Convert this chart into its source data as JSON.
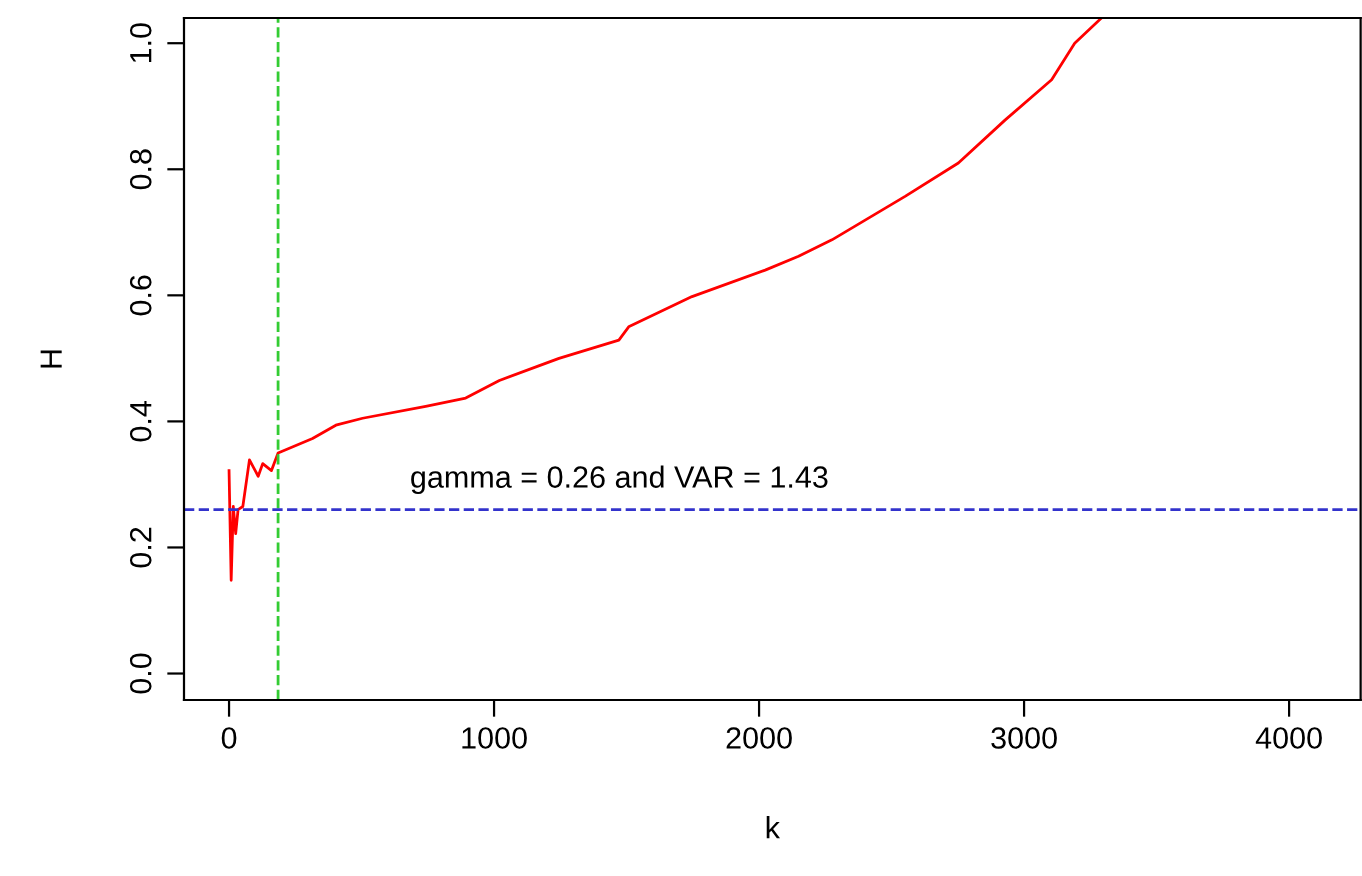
{
  "chart_data": {
    "type": "line",
    "xlabel": "k",
    "ylabel": "H",
    "series": [
      {
        "color": "#ff0000",
        "x": [
          0,
          8,
          16,
          25,
          34,
          52,
          77,
          110,
          127,
          160,
          185,
          315,
          403,
          504,
          742,
          893,
          1020,
          1194,
          1245,
          1471,
          1508,
          1747,
          2023,
          2149,
          2275,
          2551,
          2752,
          2928,
          3104,
          3191,
          3292
        ],
        "values": [
          0.322,
          0.148,
          0.265,
          0.222,
          0.26,
          0.265,
          0.339,
          0.313,
          0.333,
          0.322,
          0.35,
          0.373,
          0.394,
          0.405,
          0.424,
          0.437,
          0.465,
          0.492,
          0.5,
          0.529,
          0.55,
          0.598,
          0.64,
          0.662,
          0.688,
          0.757,
          0.81,
          0.878,
          0.942,
          1.0,
          1.04
        ]
      }
    ],
    "xlim": [
      -170,
      4270
    ],
    "ylim": [
      -0.042,
      1.04
    ],
    "xticks": [
      0,
      1000,
      2000,
      3000,
      4000
    ],
    "yticks": [
      {
        "value": 0,
        "label": "0.0"
      },
      0.2,
      0.4,
      0.6,
      0.8,
      {
        "value": 1,
        "label": "1.0"
      }
    ],
    "ref_lines": [
      {
        "axis": "x",
        "value": 185,
        "color": "#33cc33",
        "line_style": "dashed"
      },
      {
        "axis": "y",
        "value": 0.26,
        "color": "#3333cc",
        "line_style": "dashed"
      }
    ],
    "annotations": [
      "gamma = 0.26 and VAR = 1.43"
    ],
    "grid": false,
    "legend": false
  }
}
